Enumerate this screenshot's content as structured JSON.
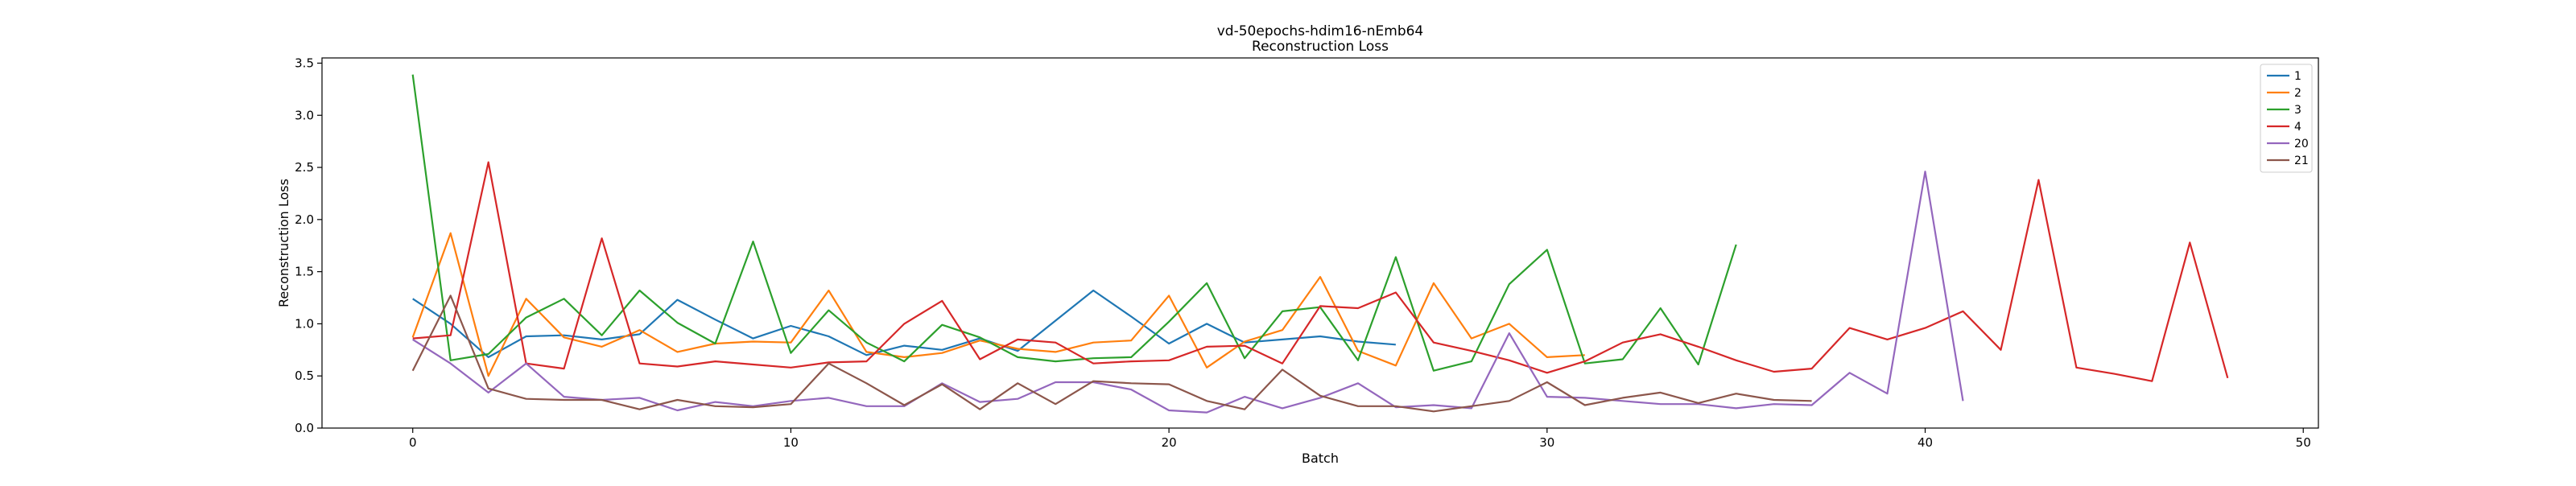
{
  "chart_data": {
    "type": "line",
    "title": "vd-50epochs-hdim16-nEmb64",
    "subtitle": "Reconstruction Loss",
    "xlabel": "Batch",
    "ylabel": "Reconstruction Loss",
    "xlim": [
      -2.4,
      50.4
    ],
    "ylim": [
      0,
      3.55
    ],
    "xticks": [
      0,
      10,
      20,
      30,
      40,
      50
    ],
    "yticks": [
      0.0,
      0.5,
      1.0,
      1.5,
      2.0,
      2.5,
      3.0,
      3.5
    ],
    "xtick_labels": [
      "0",
      "10",
      "20",
      "30",
      "40",
      "50"
    ],
    "ytick_labels": [
      "0.0",
      "0.5",
      "1.0",
      "1.5",
      "2.0",
      "2.5",
      "3.0",
      "3.5"
    ],
    "grid": false,
    "legend_position": "top-right",
    "series": [
      {
        "name": "1",
        "color": "#1f77b4",
        "x": [
          0,
          1,
          2,
          3,
          4,
          5,
          6,
          7,
          8,
          9,
          10,
          11,
          12,
          13,
          14,
          15,
          16,
          17,
          18,
          19,
          20,
          21,
          22,
          23,
          24,
          25,
          26
        ],
        "y": [
          1.24,
          1.0,
          0.68,
          0.88,
          0.89,
          0.85,
          0.9,
          1.23,
          1.04,
          0.86,
          0.98,
          0.88,
          0.7,
          0.79,
          0.75,
          0.86,
          0.74,
          1.03,
          1.32,
          1.07,
          0.81,
          1.0,
          0.82,
          0.85,
          0.88,
          0.83,
          0.8
        ]
      },
      {
        "name": "2",
        "color": "#ff7f0e",
        "x": [
          0,
          1,
          2,
          3,
          4,
          5,
          6,
          7,
          8,
          9,
          10,
          11,
          12,
          13,
          14,
          15,
          16,
          17,
          18,
          19,
          20,
          21,
          22,
          23,
          24,
          25,
          26,
          27,
          28,
          29,
          30,
          31
        ],
        "y": [
          0.87,
          1.87,
          0.5,
          1.24,
          0.87,
          0.78,
          0.94,
          0.73,
          0.81,
          0.83,
          0.82,
          1.32,
          0.73,
          0.68,
          0.72,
          0.84,
          0.76,
          0.73,
          0.82,
          0.84,
          1.27,
          0.58,
          0.83,
          0.94,
          1.45,
          0.74,
          0.6,
          1.39,
          0.86,
          1.0,
          0.68,
          0.7
        ]
      },
      {
        "name": "3",
        "color": "#2ca02c",
        "x": [
          0,
          1,
          2,
          3,
          4,
          5,
          6,
          7,
          8,
          9,
          10,
          11,
          12,
          13,
          14,
          15,
          16,
          17,
          18,
          19,
          20,
          21,
          22,
          23,
          24,
          25,
          26,
          27,
          28,
          29,
          30,
          31,
          32,
          33,
          34,
          35
        ],
        "y": [
          3.39,
          0.65,
          0.71,
          1.06,
          1.24,
          0.89,
          1.32,
          1.01,
          0.81,
          1.79,
          0.72,
          1.13,
          0.82,
          0.64,
          0.99,
          0.87,
          0.68,
          0.64,
          0.67,
          0.68,
          1.02,
          1.39,
          0.67,
          1.12,
          1.16,
          0.65,
          1.64,
          0.55,
          0.64,
          1.38,
          1.71,
          0.62,
          0.66,
          1.15,
          0.61,
          1.76
        ]
      },
      {
        "name": "4",
        "color": "#d62728",
        "x": [
          0,
          1,
          2,
          3,
          4,
          5,
          6,
          7,
          8,
          9,
          10,
          11,
          12,
          13,
          14,
          15,
          16,
          17,
          18,
          19,
          20,
          21,
          22,
          23,
          24,
          25,
          26,
          27,
          28,
          29,
          30,
          31,
          32,
          33,
          34,
          35,
          36,
          37,
          38,
          39,
          40,
          41,
          42,
          43,
          44,
          45,
          46,
          47,
          48
        ],
        "y": [
          0.86,
          0.89,
          2.55,
          0.62,
          0.57,
          1.82,
          0.62,
          0.59,
          0.64,
          0.61,
          0.58,
          0.63,
          0.64,
          1.0,
          1.22,
          0.66,
          0.85,
          0.82,
          0.62,
          0.64,
          0.65,
          0.78,
          0.79,
          0.62,
          1.17,
          1.15,
          1.3,
          0.82,
          0.74,
          0.65,
          0.53,
          0.64,
          0.82,
          0.9,
          0.78,
          0.65,
          0.54,
          0.57,
          0.96,
          0.85,
          0.96,
          1.12,
          0.75,
          2.38,
          0.58,
          0.52,
          0.45,
          1.78,
          0.48
        ]
      },
      {
        "name": "20",
        "color": "#9467bd",
        "x": [
          0,
          1,
          2,
          3,
          4,
          5,
          6,
          7,
          8,
          9,
          10,
          11,
          12,
          13,
          14,
          15,
          16,
          17,
          18,
          19,
          20,
          21,
          22,
          23,
          24,
          25,
          26,
          27,
          28,
          29,
          30,
          31,
          32,
          33,
          34,
          35,
          36,
          37,
          38,
          39,
          40,
          41
        ],
        "y": [
          0.85,
          0.62,
          0.34,
          0.62,
          0.3,
          0.27,
          0.29,
          0.17,
          0.25,
          0.21,
          0.26,
          0.29,
          0.21,
          0.21,
          0.43,
          0.25,
          0.28,
          0.44,
          0.44,
          0.37,
          0.17,
          0.15,
          0.3,
          0.19,
          0.29,
          0.43,
          0.2,
          0.22,
          0.19,
          0.91,
          0.3,
          0.29,
          0.26,
          0.23,
          0.23,
          0.19,
          0.23,
          0.22,
          0.53,
          0.33,
          2.46,
          0.26
        ]
      },
      {
        "name": "21",
        "color": "#8c564b",
        "x": [
          0,
          1,
          2,
          3,
          4,
          5,
          6,
          7,
          8,
          9,
          10,
          11,
          12,
          13,
          14,
          15,
          16,
          17,
          18,
          19,
          20,
          21,
          22,
          23,
          24,
          25,
          26,
          27,
          28,
          29,
          30,
          31,
          32,
          33,
          34,
          35,
          36,
          37
        ],
        "y": [
          0.55,
          1.27,
          0.38,
          0.28,
          0.27,
          0.27,
          0.18,
          0.27,
          0.21,
          0.2,
          0.23,
          0.62,
          0.43,
          0.22,
          0.42,
          0.18,
          0.43,
          0.23,
          0.45,
          0.43,
          0.42,
          0.26,
          0.18,
          0.56,
          0.31,
          0.21,
          0.21,
          0.16,
          0.21,
          0.26,
          0.44,
          0.22,
          0.29,
          0.34,
          0.24,
          0.33,
          0.27,
          0.26
        ]
      }
    ]
  }
}
